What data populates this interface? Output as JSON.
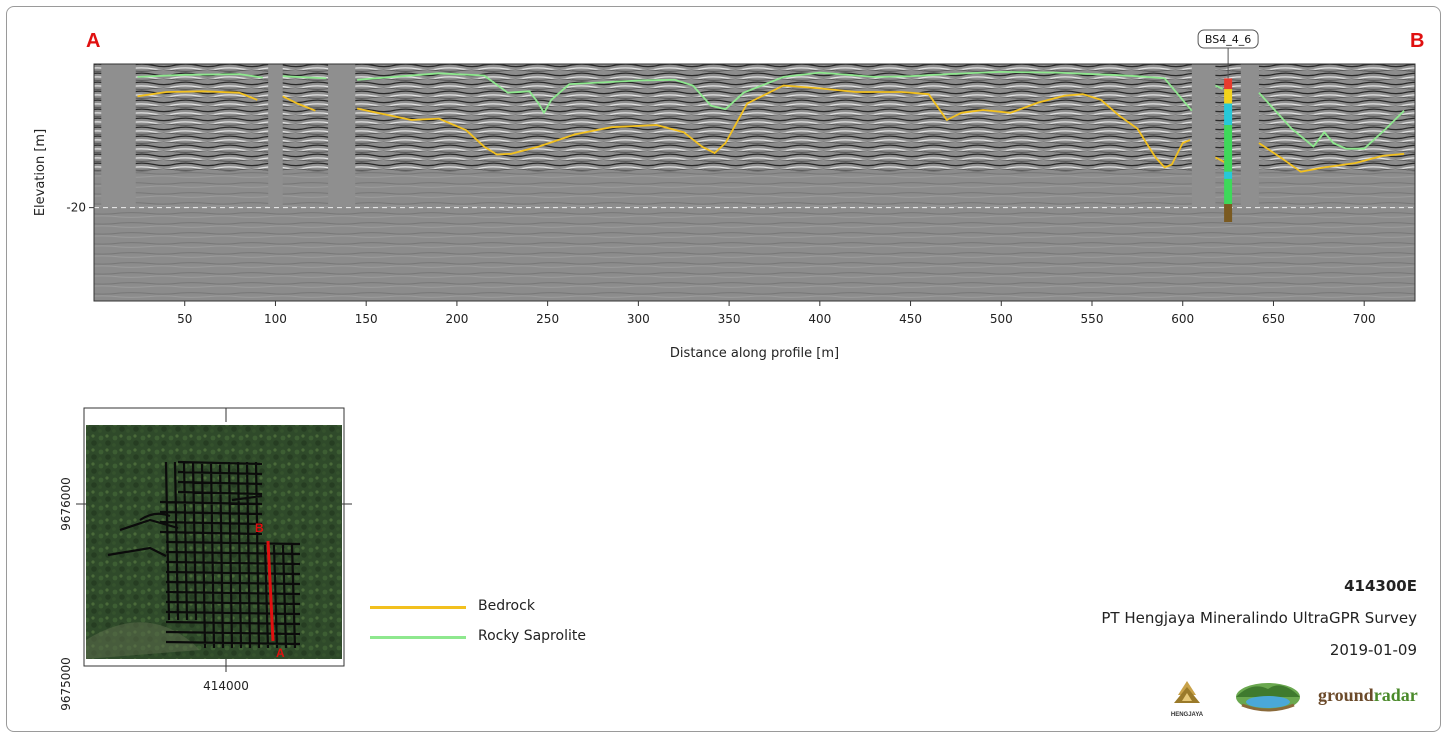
{
  "endpoints": {
    "start": "A",
    "end": "B"
  },
  "borehole": {
    "label": "BS4_4_6",
    "distance": 625,
    "top": -2,
    "bottom": -22,
    "segments": [
      {
        "from": -2,
        "to": -3.5,
        "color": "#e83b2e"
      },
      {
        "from": -3.5,
        "to": -5.5,
        "color": "#f2d21c"
      },
      {
        "from": -5.5,
        "to": -8.5,
        "color": "#26c8d8"
      },
      {
        "from": -8.5,
        "to": -15,
        "color": "#3ed85a"
      },
      {
        "from": -15,
        "to": -16,
        "color": "#26c8d8"
      },
      {
        "from": -16,
        "to": -19.5,
        "color": "#3ed85a"
      },
      {
        "from": -19.5,
        "to": -22,
        "color": "#7a5a20"
      }
    ]
  },
  "legend": [
    {
      "label": "Bedrock",
      "color": "#f2c01e"
    },
    {
      "label": "Rocky Saprolite",
      "color": "#8ee88e"
    }
  ],
  "info": {
    "line_id": "414300E",
    "survey": "PT Hengjaya Mineralindo UltraGPR Survey",
    "date": "2019-01-09"
  },
  "logos": {
    "hengjaya": "HENGJAYA",
    "groundradar_prefix": "ground",
    "groundradar_suffix": "radar"
  },
  "chart_data": {
    "type": "line",
    "xlabel": "Distance along profile [m]",
    "ylabel": "Elevation [m]",
    "xlim": [
      0,
      728
    ],
    "ylim": [
      -33,
      0
    ],
    "x_ticks": [
      50,
      100,
      150,
      200,
      250,
      300,
      350,
      400,
      450,
      500,
      550,
      600,
      650,
      700
    ],
    "y_ticks": [
      -20
    ],
    "reference_line": -20,
    "gaps": [
      [
        4,
        23
      ],
      [
        96,
        104
      ],
      [
        129,
        144
      ],
      [
        605,
        618
      ],
      [
        632,
        642
      ]
    ],
    "series": [
      {
        "name": "Rocky Saprolite",
        "color": "#8ee88e",
        "points": [
          [
            24,
            -1.8
          ],
          [
            50,
            -1.5
          ],
          [
            80,
            -1.4
          ],
          [
            93,
            -1.9
          ],
          [
            null,
            null
          ],
          [
            104,
            -1.7
          ],
          [
            128,
            -2
          ],
          [
            null,
            null
          ],
          [
            145,
            -2.2
          ],
          [
            170,
            -1.7
          ],
          [
            190,
            -1.3
          ],
          [
            215,
            -1.6
          ],
          [
            228,
            -4
          ],
          [
            240,
            -3.8
          ],
          [
            245,
            -5.5
          ],
          [
            248,
            -6.8
          ],
          [
            252,
            -5
          ],
          [
            262,
            -2.8
          ],
          [
            300,
            -2.3
          ],
          [
            320,
            -2.2
          ],
          [
            330,
            -3
          ],
          [
            340,
            -5.8
          ],
          [
            348,
            -6.3
          ],
          [
            358,
            -4
          ],
          [
            380,
            -1.8
          ],
          [
            400,
            -1.2
          ],
          [
            430,
            -1.8
          ],
          [
            450,
            -1.7
          ],
          [
            470,
            -1.4
          ],
          [
            500,
            -1.1
          ],
          [
            530,
            -1.2
          ],
          [
            560,
            -1.5
          ],
          [
            575,
            -1.7
          ],
          [
            590,
            -2
          ],
          [
            600,
            -5
          ],
          [
            605,
            -6.5
          ],
          [
            null,
            null
          ],
          [
            618,
            -3
          ],
          [
            622,
            -3.5
          ],
          [
            null,
            null
          ],
          [
            642,
            -4
          ],
          [
            660,
            -9
          ],
          [
            672,
            -11.5
          ],
          [
            678,
            -9.5
          ],
          [
            683,
            -11
          ],
          [
            690,
            -11.8
          ],
          [
            700,
            -11.8
          ],
          [
            712,
            -9
          ],
          [
            722,
            -6.5
          ]
        ]
      },
      {
        "name": "Bedrock",
        "color": "#f2c01e",
        "points": [
          [
            24,
            -4.5
          ],
          [
            40,
            -3.9
          ],
          [
            60,
            -3.8
          ],
          [
            80,
            -4
          ],
          [
            90,
            -5
          ],
          [
            null,
            null
          ],
          [
            104,
            -4.5
          ],
          [
            112,
            -5.5
          ],
          [
            122,
            -6.5
          ],
          [
            null,
            null
          ],
          [
            145,
            -6.2
          ],
          [
            160,
            -7
          ],
          [
            175,
            -7.8
          ],
          [
            190,
            -7.6
          ],
          [
            205,
            -9.2
          ],
          [
            215,
            -11.5
          ],
          [
            222,
            -12.6
          ],
          [
            230,
            -12.5
          ],
          [
            245,
            -11.5
          ],
          [
            265,
            -9.8
          ],
          [
            285,
            -8.8
          ],
          [
            310,
            -8.5
          ],
          [
            325,
            -9.5
          ],
          [
            335,
            -11.5
          ],
          [
            342,
            -12.4
          ],
          [
            348,
            -11
          ],
          [
            360,
            -5.5
          ],
          [
            380,
            -3
          ],
          [
            400,
            -3.4
          ],
          [
            420,
            -3.9
          ],
          [
            445,
            -3.9
          ],
          [
            460,
            -4.2
          ],
          [
            470,
            -7.8
          ],
          [
            478,
            -6.8
          ],
          [
            490,
            -6.4
          ],
          [
            505,
            -6.8
          ],
          [
            520,
            -5.4
          ],
          [
            535,
            -4.4
          ],
          [
            545,
            -4.2
          ],
          [
            555,
            -5
          ],
          [
            565,
            -7.2
          ],
          [
            575,
            -9
          ],
          [
            585,
            -13
          ],
          [
            590,
            -14.4
          ],
          [
            594,
            -14
          ],
          [
            600,
            -11
          ],
          [
            604,
            -10.6
          ],
          [
            null,
            null
          ],
          [
            618,
            -13
          ],
          [
            624,
            -13.8
          ],
          [
            null,
            null
          ],
          [
            642,
            -11
          ],
          [
            655,
            -13.2
          ],
          [
            665,
            -15
          ],
          [
            678,
            -14.4
          ],
          [
            695,
            -13.8
          ],
          [
            710,
            -12.8
          ],
          [
            722,
            -12.5
          ]
        ]
      }
    ]
  },
  "inset_map": {
    "x_tick_label": "414000",
    "y_tick_labels": [
      "9676000",
      "9675000"
    ],
    "profile_start": "A",
    "profile_end": "B"
  }
}
